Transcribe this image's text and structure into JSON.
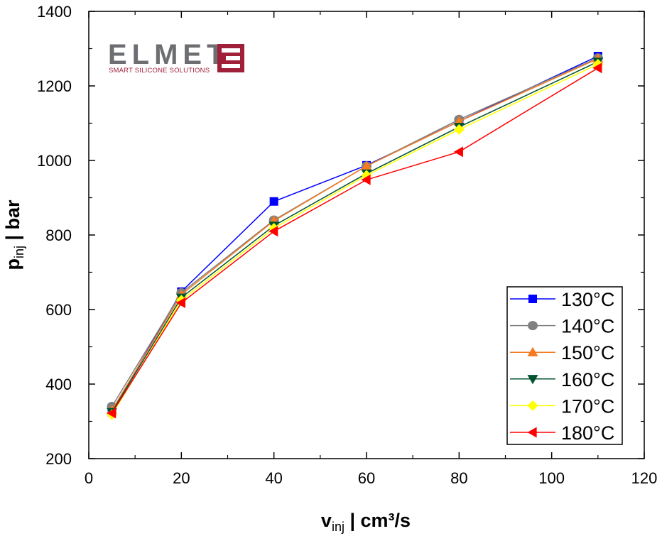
{
  "chart_data": {
    "type": "line",
    "xlabel": {
      "main": "v",
      "sub": "inj",
      "rest": " | cm³/s"
    },
    "ylabel": {
      "main": "p",
      "sub": "inj",
      "rest": " | bar"
    },
    "xlim": [
      0,
      120
    ],
    "ylim": [
      200,
      1400
    ],
    "xticks": [
      0,
      20,
      40,
      60,
      80,
      100,
      120
    ],
    "yticks": [
      200,
      400,
      600,
      800,
      1000,
      1200,
      1400
    ],
    "x": [
      5,
      20,
      40,
      60,
      80,
      110
    ],
    "grid": false,
    "legend_position": "bottom-right",
    "series": [
      {
        "name": "130°C",
        "color": "#0000ff",
        "marker": "square",
        "values": [
          325,
          648,
          890,
          987,
          1105,
          1280
        ]
      },
      {
        "name": "140°C",
        "color": "#808080",
        "marker": "circle",
        "values": [
          340,
          645,
          840,
          985,
          1110,
          1275
        ]
      },
      {
        "name": "150°C",
        "color": "#f47b20",
        "marker": "triangle-up",
        "values": [
          330,
          640,
          838,
          985,
          1105,
          1273
        ]
      },
      {
        "name": "160°C",
        "color": "#00532f",
        "marker": "triangle-down",
        "values": [
          325,
          632,
          825,
          965,
          1090,
          1265
        ]
      },
      {
        "name": "170°C",
        "color": "#ffff00",
        "marker": "diamond",
        "values": [
          318,
          625,
          818,
          960,
          1083,
          1258
        ]
      },
      {
        "name": "180°C",
        "color": "#ff0000",
        "marker": "triangle-left",
        "values": [
          322,
          618,
          810,
          948,
          1023,
          1248
        ]
      }
    ]
  },
  "logo": {
    "text": "ELMET",
    "tagline": "SMART SILICONE SOLUTIONS",
    "color": "#a0203a"
  }
}
